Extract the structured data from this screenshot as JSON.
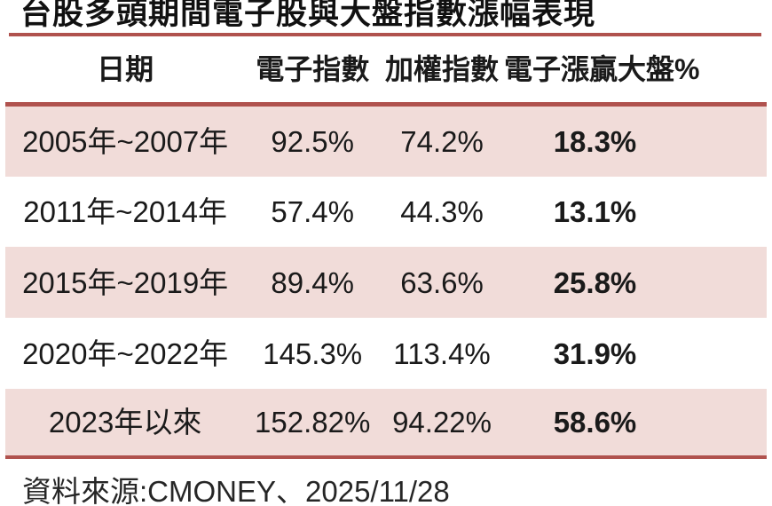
{
  "title": "台股多頭期間電子股與大盤指數漲幅表現",
  "chart_data": {
    "type": "table",
    "title": "台股多頭期間電子股與大盤指數漲幅表現",
    "columns": [
      "日期",
      "電子指數",
      "加權指數",
      "電子漲贏大盤%"
    ],
    "rows": [
      [
        "2005年~2007年",
        "92.5%",
        "74.2%",
        "18.3%"
      ],
      [
        "2011年~2014年",
        "57.4%",
        "44.3%",
        "13.1%"
      ],
      [
        "2015年~2019年",
        "89.4%",
        "63.6%",
        "25.8%"
      ],
      [
        "2020年~2022年",
        "145.3%",
        "113.4%",
        "31.9%"
      ],
      [
        "2023年以來",
        "152.82%",
        "94.22%",
        "58.6%"
      ]
    ],
    "notes": "最後一欄（電子漲贏大盤%）以粗體顯示；奇數資料列為粉紅底色",
    "source": "資料來源:CMONEY、2025/11/28"
  },
  "source_note": "資料來源:CMONEY、2025/11/28",
  "colors": {
    "row_pink": "#f1dcd9",
    "rule_red": "#b0524e",
    "text": "#1a1a1a",
    "muted_text": "#262626"
  }
}
